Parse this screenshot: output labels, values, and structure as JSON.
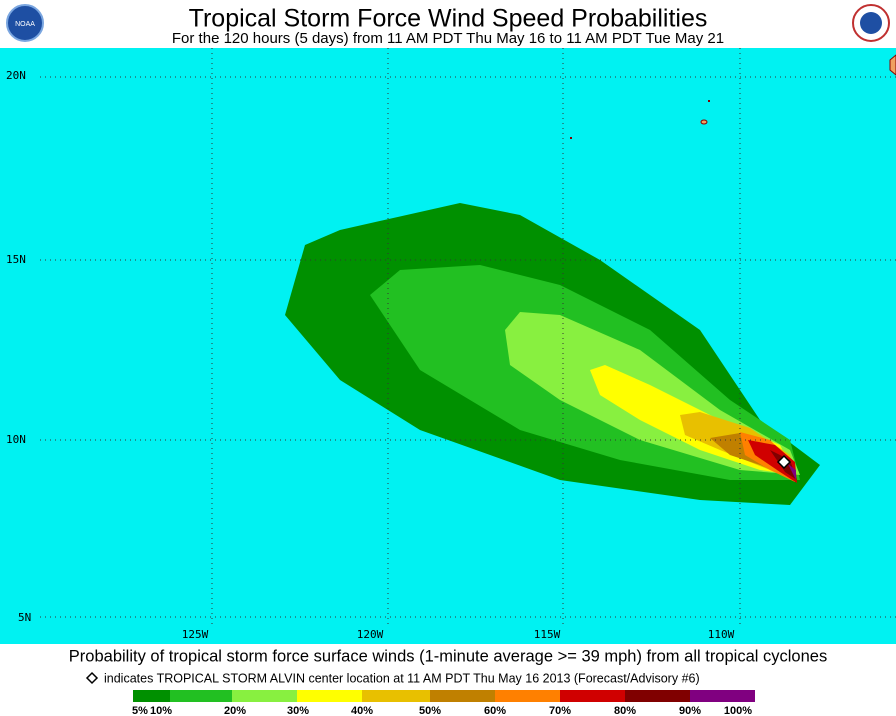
{
  "header": {
    "title": "Tropical Storm Force Wind Speed Probabilities",
    "subtitle": "For the 120 hours (5 days) from 11 AM PDT Thu May 16 to 11 AM PDT Tue May 21"
  },
  "map": {
    "lat_labels": [
      "20N",
      "15N",
      "10N",
      "5N"
    ],
    "lon_labels": [
      "125W",
      "120W",
      "115W",
      "110W"
    ]
  },
  "caption": "Probability of tropical storm force surface winds (1-minute average >= 39 mph) from all tropical cyclones",
  "footnote": "indicates TROPICAL STORM ALVIN center location at 11 AM PDT Thu May 16 2013 (Forecast/Advisory #6)",
  "legend": {
    "labels": [
      "5%",
      "10%",
      "20%",
      "30%",
      "40%",
      "50%",
      "60%",
      "70%",
      "80%",
      "90%",
      "100%"
    ]
  }
}
